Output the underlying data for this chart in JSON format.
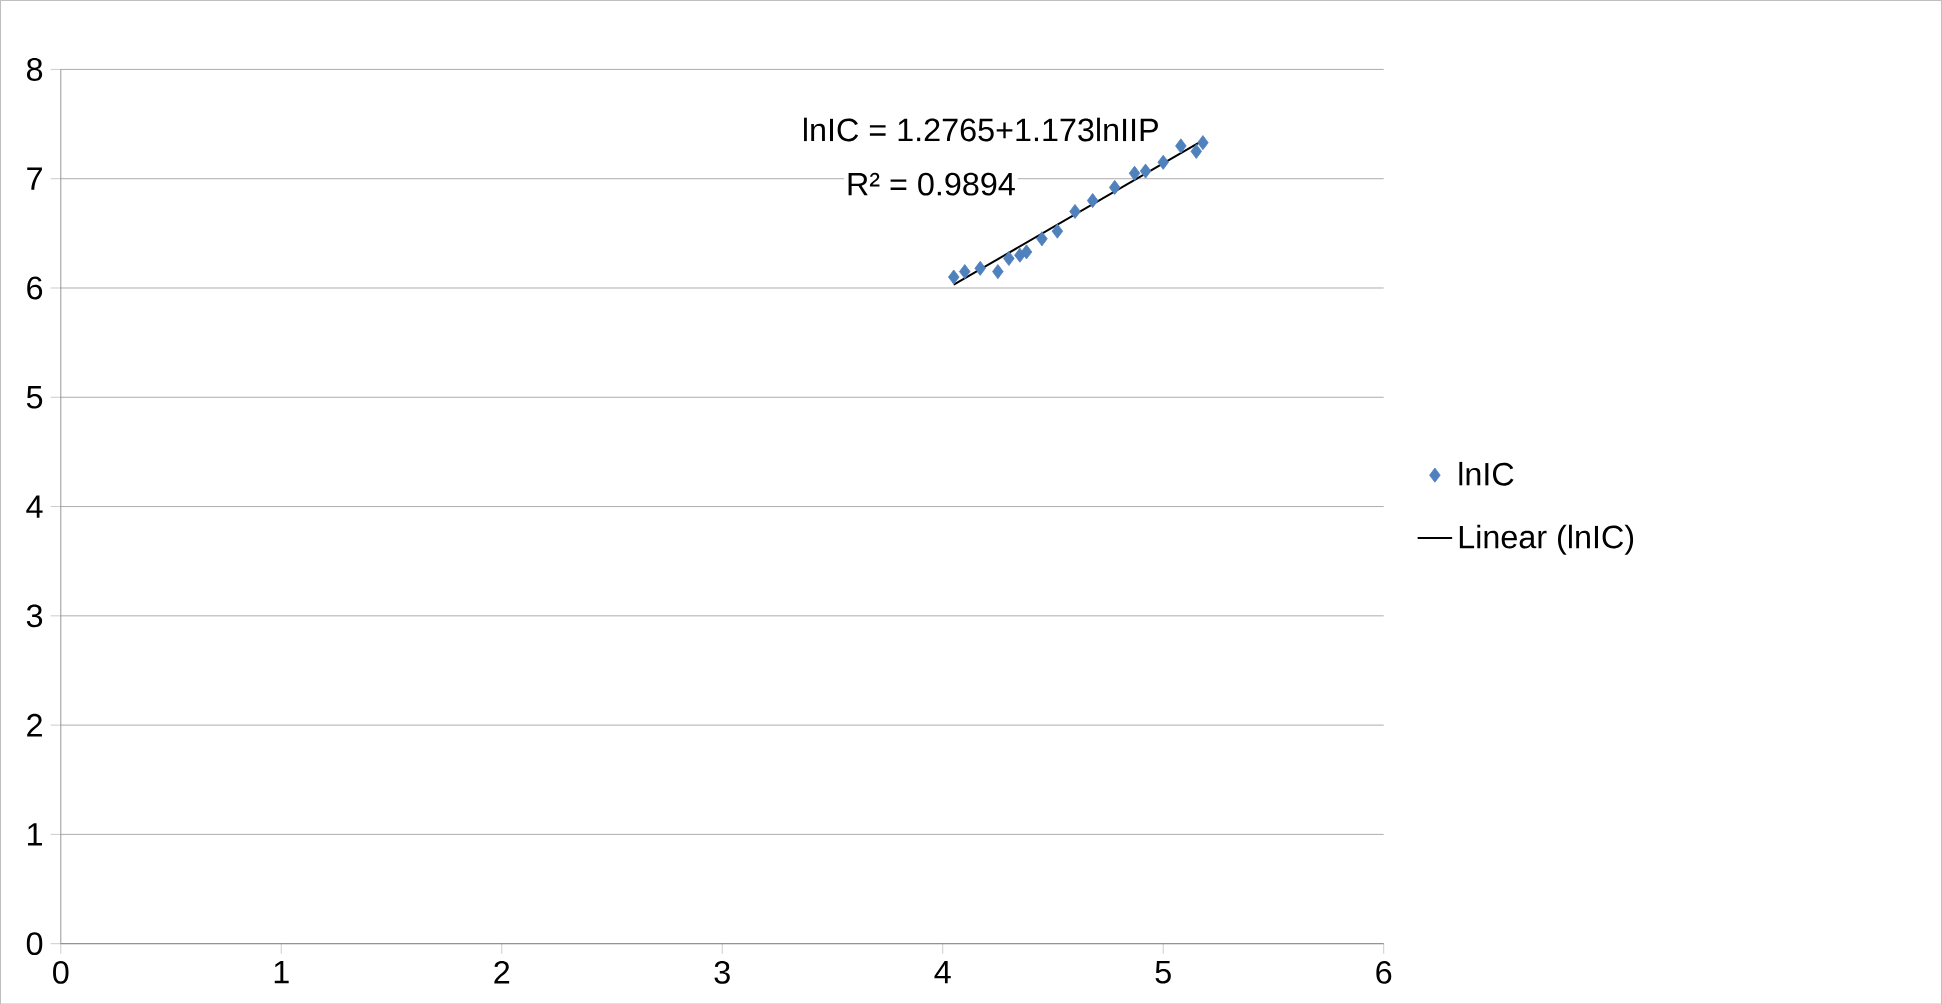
{
  "chart_data": {
    "type": "scatter",
    "xlim": [
      0,
      6
    ],
    "ylim": [
      0,
      8
    ],
    "xticks": [
      0,
      1,
      2,
      3,
      4,
      5,
      6
    ],
    "yticks": [
      0,
      1,
      2,
      3,
      4,
      5,
      6,
      7,
      8
    ],
    "grid": "y",
    "legend": "right",
    "annotations": [
      "lnIC = 1.2765+1.173lnIIP",
      "R² = 0.9894"
    ],
    "series": [
      {
        "name": "lnIC",
        "marker": "diamond",
        "color": "#4f81bd",
        "x": [
          4.05,
          4.1,
          4.17,
          4.25,
          4.3,
          4.35,
          4.38,
          4.45,
          4.52,
          4.6,
          4.68,
          4.78,
          4.87,
          4.92,
          5.0,
          5.08,
          5.15,
          5.18
        ],
        "values": [
          6.1,
          6.15,
          6.18,
          6.15,
          6.27,
          6.3,
          6.33,
          6.45,
          6.52,
          6.7,
          6.8,
          6.92,
          7.05,
          7.07,
          7.15,
          7.3,
          7.25,
          7.33
        ]
      },
      {
        "name": "Linear (lnIC)",
        "type": "line",
        "marker": "none",
        "line_style": "solid",
        "color": "#000000",
        "x": [
          4.05,
          5.18
        ],
        "values": [
          6.03,
          7.35
        ]
      }
    ]
  }
}
